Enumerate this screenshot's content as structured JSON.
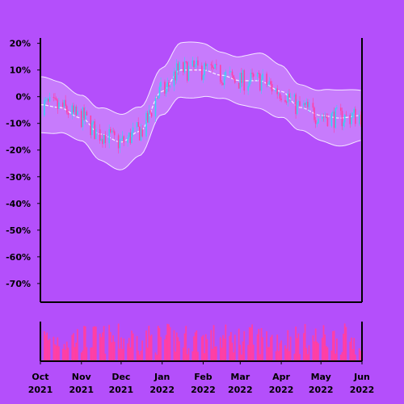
{
  "chart_data": {
    "type": "candlestick",
    "title": "",
    "xlabel": "",
    "ylabel": "",
    "ylim": [
      -77,
      22
    ],
    "y_ticks": [
      "20%",
      "10%",
      "0%",
      "-10%",
      "-20%",
      "-30%",
      "-40%",
      "-50%",
      "-60%",
      "-70%"
    ],
    "y_tick_values": [
      20,
      10,
      0,
      -10,
      -20,
      -30,
      -40,
      -50,
      -60,
      -70
    ],
    "x_ticks": [
      {
        "month": "Oct",
        "year": "2021"
      },
      {
        "month": "Nov",
        "year": "2021"
      },
      {
        "month": "Dec",
        "year": "2021"
      },
      {
        "month": "Jan",
        "year": "2022"
      },
      {
        "month": "Feb",
        "year": "2022"
      },
      {
        "month": "Mar",
        "year": "2022"
      },
      {
        "month": "Apr",
        "year": "2022"
      },
      {
        "month": "May",
        "year": "2022"
      },
      {
        "month": "Jun",
        "year": "2022"
      }
    ],
    "x_tick_dates": [
      "2021-10-01",
      "2021-11-01",
      "2021-12-01",
      "2022-01-01",
      "2022-02-01",
      "2022-03-01",
      "2022-04-01",
      "2022-05-01",
      "2022-06-01"
    ],
    "grid": false,
    "colors": {
      "background": "#b44ffb",
      "up": "#38d1f2",
      "down": "#ff3fa4",
      "band": "#ffffff",
      "volume": "#ff3fa4"
    },
    "mid_line": {
      "x": [
        "2021-10-01",
        "2021-10-15",
        "2021-11-01",
        "2021-11-15",
        "2021-12-01",
        "2021-12-15",
        "2022-01-01",
        "2022-01-15",
        "2022-02-01",
        "2022-02-15",
        "2022-03-01",
        "2022-03-15",
        "2022-04-01",
        "2022-04-15",
        "2022-05-01",
        "2022-05-15",
        "2022-06-01"
      ],
      "y": [
        -3,
        -4,
        -8,
        -14,
        -17,
        -13,
        2,
        10,
        10,
        8,
        6,
        6,
        2,
        -4,
        -7,
        -8,
        -7
      ]
    },
    "band_width": 9.5,
    "volume": {
      "min": 2,
      "max": 12
    }
  }
}
